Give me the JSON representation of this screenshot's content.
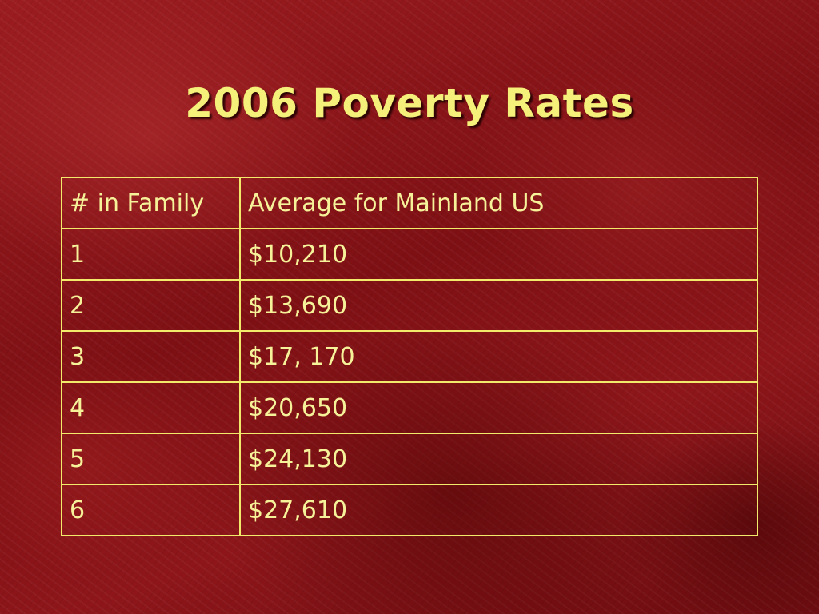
{
  "slide": {
    "title": "2006 Poverty Rates"
  },
  "table": {
    "headers": [
      "# in Family",
      "Average for Mainland US"
    ],
    "rows": [
      {
        "family_size": "1",
        "threshold": "$10,210"
      },
      {
        "family_size": "2",
        "threshold": "$13,690"
      },
      {
        "family_size": "3",
        "threshold": "$17, 170"
      },
      {
        "family_size": "4",
        "threshold": "$20,650"
      },
      {
        "family_size": "5",
        "threshold": "$24,130"
      },
      {
        "family_size": "6",
        "threshold": "$27,610"
      }
    ]
  },
  "colors": {
    "background": "#8c1418",
    "text": "#f6f29a",
    "title": "#f4f07a",
    "border": "#f2ea6a"
  }
}
